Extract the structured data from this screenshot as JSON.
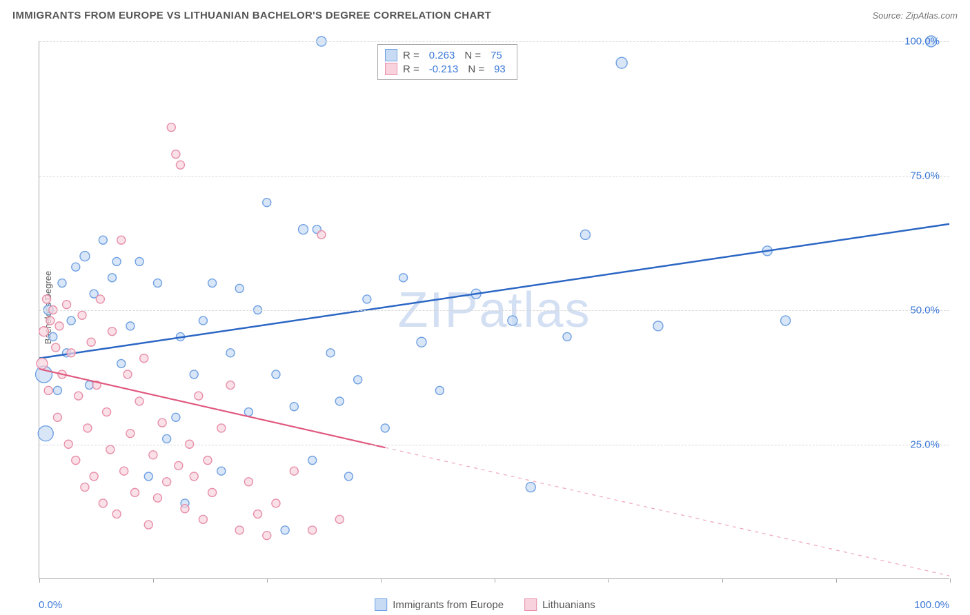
{
  "title": "IMMIGRANTS FROM EUROPE VS LITHUANIAN BACHELOR'S DEGREE CORRELATION CHART",
  "source": "Source: ZipAtlas.com",
  "watermark": "ZIPatlas",
  "chart": {
    "type": "scatter",
    "x_range": [
      0,
      100
    ],
    "y_range": [
      0,
      100
    ],
    "x_ticks": [
      0,
      12.5,
      25,
      37.5,
      50,
      62.5,
      75,
      87.5,
      100
    ],
    "x_tick_labels": {
      "0": "0.0%",
      "100": "100.0%"
    },
    "y_gridlines": [
      25,
      50,
      75,
      100
    ],
    "y_tick_labels": {
      "25": "25.0%",
      "50": "50.0%",
      "75": "75.0%",
      "100": "100.0%"
    },
    "ylabel": "Bachelor's Degree",
    "background_color": "#ffffff",
    "grid_color": "#d7d7d7",
    "axis_color": "#a7a7a7"
  },
  "legend_top": {
    "rows": [
      {
        "swatch_fill": "#c8dbf5",
        "swatch_border": "#6fa0e2",
        "r_label": "R =",
        "r_val": "0.263",
        "n_label": "N =",
        "n_val": "75"
      },
      {
        "swatch_fill": "#f8d3dd",
        "swatch_border": "#e78fa9",
        "r_label": "R =",
        "r_val": "-0.213",
        "n_label": "N =",
        "n_val": "93"
      }
    ]
  },
  "legend_bottom": {
    "items": [
      {
        "swatch_fill": "#c8dbf5",
        "swatch_border": "#6fa0e2",
        "label": "Immigrants from Europe"
      },
      {
        "swatch_fill": "#f8d3dd",
        "swatch_border": "#e78fa9",
        "label": "Lithuanians"
      }
    ]
  },
  "series": [
    {
      "name": "europe",
      "color_fill": "#c8dbf5",
      "color_stroke": "#6fa0e2",
      "opacity": 0.7,
      "trend": {
        "x1": 0,
        "y1": 41,
        "x2": 100,
        "y2": 66,
        "solid_until_x": 100,
        "stroke": "#2b66c4",
        "width": 2.5
      },
      "points": [
        {
          "x": 0.5,
          "y": 38,
          "r": 12
        },
        {
          "x": 0.7,
          "y": 27,
          "r": 11
        },
        {
          "x": 1,
          "y": 50,
          "r": 7
        },
        {
          "x": 1.5,
          "y": 45,
          "r": 6
        },
        {
          "x": 2,
          "y": 35,
          "r": 6
        },
        {
          "x": 2.5,
          "y": 55,
          "r": 6
        },
        {
          "x": 3,
          "y": 42,
          "r": 6
        },
        {
          "x": 3.5,
          "y": 48,
          "r": 6
        },
        {
          "x": 4,
          "y": 58,
          "r": 6
        },
        {
          "x": 5,
          "y": 60,
          "r": 7
        },
        {
          "x": 5.5,
          "y": 36,
          "r": 6
        },
        {
          "x": 6,
          "y": 53,
          "r": 6
        },
        {
          "x": 7,
          "y": 63,
          "r": 6
        },
        {
          "x": 8,
          "y": 56,
          "r": 6
        },
        {
          "x": 8.5,
          "y": 59,
          "r": 6
        },
        {
          "x": 9,
          "y": 40,
          "r": 6
        },
        {
          "x": 10,
          "y": 47,
          "r": 6
        },
        {
          "x": 11,
          "y": 59,
          "r": 6
        },
        {
          "x": 12,
          "y": 19,
          "r": 6
        },
        {
          "x": 13,
          "y": 55,
          "r": 6
        },
        {
          "x": 14,
          "y": 26,
          "r": 6
        },
        {
          "x": 15,
          "y": 30,
          "r": 6
        },
        {
          "x": 15.5,
          "y": 45,
          "r": 6
        },
        {
          "x": 16,
          "y": 14,
          "r": 6
        },
        {
          "x": 17,
          "y": 38,
          "r": 6
        },
        {
          "x": 18,
          "y": 48,
          "r": 6
        },
        {
          "x": 19,
          "y": 55,
          "r": 6
        },
        {
          "x": 20,
          "y": 20,
          "r": 6
        },
        {
          "x": 21,
          "y": 42,
          "r": 6
        },
        {
          "x": 22,
          "y": 54,
          "r": 6
        },
        {
          "x": 23,
          "y": 31,
          "r": 6
        },
        {
          "x": 24,
          "y": 50,
          "r": 6
        },
        {
          "x": 25,
          "y": 70,
          "r": 6
        },
        {
          "x": 26,
          "y": 38,
          "r": 6
        },
        {
          "x": 27,
          "y": 9,
          "r": 6
        },
        {
          "x": 28,
          "y": 32,
          "r": 6
        },
        {
          "x": 29,
          "y": 65,
          "r": 7
        },
        {
          "x": 30,
          "y": 22,
          "r": 6
        },
        {
          "x": 30.5,
          "y": 65,
          "r": 6
        },
        {
          "x": 31,
          "y": 100,
          "r": 7
        },
        {
          "x": 32,
          "y": 42,
          "r": 6
        },
        {
          "x": 33,
          "y": 33,
          "r": 6
        },
        {
          "x": 34,
          "y": 19,
          "r": 6
        },
        {
          "x": 35,
          "y": 37,
          "r": 6
        },
        {
          "x": 36,
          "y": 52,
          "r": 6
        },
        {
          "x": 38,
          "y": 28,
          "r": 6
        },
        {
          "x": 40,
          "y": 56,
          "r": 6
        },
        {
          "x": 42,
          "y": 44,
          "r": 7
        },
        {
          "x": 44,
          "y": 35,
          "r": 6
        },
        {
          "x": 48,
          "y": 53,
          "r": 7
        },
        {
          "x": 52,
          "y": 48,
          "r": 7
        },
        {
          "x": 54,
          "y": 17,
          "r": 7
        },
        {
          "x": 58,
          "y": 45,
          "r": 6
        },
        {
          "x": 60,
          "y": 64,
          "r": 7
        },
        {
          "x": 64,
          "y": 96,
          "r": 8
        },
        {
          "x": 68,
          "y": 47,
          "r": 7
        },
        {
          "x": 80,
          "y": 61,
          "r": 7
        },
        {
          "x": 82,
          "y": 48,
          "r": 7
        },
        {
          "x": 98,
          "y": 100,
          "r": 8
        }
      ]
    },
    {
      "name": "lithuanians",
      "color_fill": "#f8d3dd",
      "color_stroke": "#e78fa9",
      "opacity": 0.7,
      "trend": {
        "x1": 0,
        "y1": 39,
        "x2": 100,
        "y2": 0.5,
        "solid_until_x": 38,
        "stroke": "#e0597f",
        "width": 2.2
      },
      "points": [
        {
          "x": 0.3,
          "y": 40,
          "r": 8
        },
        {
          "x": 0.5,
          "y": 46,
          "r": 7
        },
        {
          "x": 0.8,
          "y": 52,
          "r": 6
        },
        {
          "x": 1,
          "y": 35,
          "r": 6
        },
        {
          "x": 1.2,
          "y": 48,
          "r": 6
        },
        {
          "x": 1.5,
          "y": 50,
          "r": 6
        },
        {
          "x": 1.8,
          "y": 43,
          "r": 6
        },
        {
          "x": 2,
          "y": 30,
          "r": 6
        },
        {
          "x": 2.2,
          "y": 47,
          "r": 6
        },
        {
          "x": 2.5,
          "y": 38,
          "r": 6
        },
        {
          "x": 3,
          "y": 51,
          "r": 6
        },
        {
          "x": 3.2,
          "y": 25,
          "r": 6
        },
        {
          "x": 3.5,
          "y": 42,
          "r": 6
        },
        {
          "x": 4,
          "y": 22,
          "r": 6
        },
        {
          "x": 4.3,
          "y": 34,
          "r": 6
        },
        {
          "x": 4.7,
          "y": 49,
          "r": 6
        },
        {
          "x": 5,
          "y": 17,
          "r": 6
        },
        {
          "x": 5.3,
          "y": 28,
          "r": 6
        },
        {
          "x": 5.7,
          "y": 44,
          "r": 6
        },
        {
          "x": 6,
          "y": 19,
          "r": 6
        },
        {
          "x": 6.3,
          "y": 36,
          "r": 6
        },
        {
          "x": 6.7,
          "y": 52,
          "r": 6
        },
        {
          "x": 7,
          "y": 14,
          "r": 6
        },
        {
          "x": 7.4,
          "y": 31,
          "r": 6
        },
        {
          "x": 7.8,
          "y": 24,
          "r": 6
        },
        {
          "x": 8,
          "y": 46,
          "r": 6
        },
        {
          "x": 8.5,
          "y": 12,
          "r": 6
        },
        {
          "x": 9,
          "y": 63,
          "r": 6
        },
        {
          "x": 9.3,
          "y": 20,
          "r": 6
        },
        {
          "x": 9.7,
          "y": 38,
          "r": 6
        },
        {
          "x": 10,
          "y": 27,
          "r": 6
        },
        {
          "x": 10.5,
          "y": 16,
          "r": 6
        },
        {
          "x": 11,
          "y": 33,
          "r": 6
        },
        {
          "x": 11.5,
          "y": 41,
          "r": 6
        },
        {
          "x": 12,
          "y": 10,
          "r": 6
        },
        {
          "x": 12.5,
          "y": 23,
          "r": 6
        },
        {
          "x": 13,
          "y": 15,
          "r": 6
        },
        {
          "x": 13.5,
          "y": 29,
          "r": 6
        },
        {
          "x": 14,
          "y": 18,
          "r": 6
        },
        {
          "x": 14.5,
          "y": 84,
          "r": 6
        },
        {
          "x": 15,
          "y": 79,
          "r": 6
        },
        {
          "x": 15.3,
          "y": 21,
          "r": 6
        },
        {
          "x": 15.5,
          "y": 77,
          "r": 6
        },
        {
          "x": 16,
          "y": 13,
          "r": 6
        },
        {
          "x": 16.5,
          "y": 25,
          "r": 6
        },
        {
          "x": 17,
          "y": 19,
          "r": 6
        },
        {
          "x": 17.5,
          "y": 34,
          "r": 6
        },
        {
          "x": 18,
          "y": 11,
          "r": 6
        },
        {
          "x": 18.5,
          "y": 22,
          "r": 6
        },
        {
          "x": 19,
          "y": 16,
          "r": 6
        },
        {
          "x": 20,
          "y": 28,
          "r": 6
        },
        {
          "x": 21,
          "y": 36,
          "r": 6
        },
        {
          "x": 22,
          "y": 9,
          "r": 6
        },
        {
          "x": 23,
          "y": 18,
          "r": 6
        },
        {
          "x": 24,
          "y": 12,
          "r": 6
        },
        {
          "x": 25,
          "y": 8,
          "r": 6
        },
        {
          "x": 26,
          "y": 14,
          "r": 6
        },
        {
          "x": 28,
          "y": 20,
          "r": 6
        },
        {
          "x": 30,
          "y": 9,
          "r": 6
        },
        {
          "x": 31,
          "y": 64,
          "r": 6
        },
        {
          "x": 33,
          "y": 11,
          "r": 6
        }
      ]
    }
  ]
}
